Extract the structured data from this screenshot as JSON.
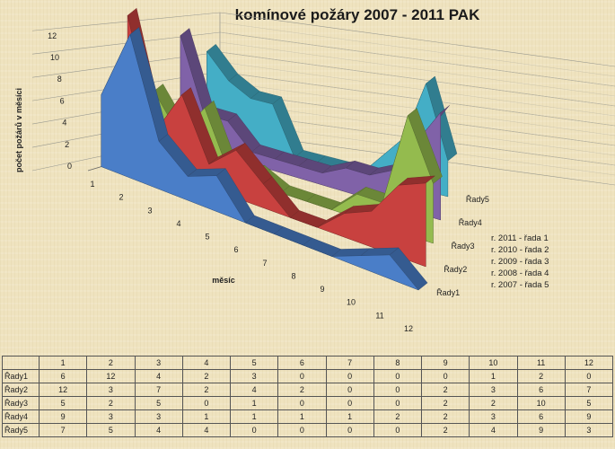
{
  "chart_data": {
    "type": "area",
    "title": "komínové požáry 2007 - 2011 PAK",
    "xlabel": "měsíc",
    "ylabel": "počet požárů v měsíci",
    "ylim": [
      0,
      12
    ],
    "yticks": [
      "0",
      "2",
      "4",
      "6",
      "8",
      "10",
      "12"
    ],
    "categories": [
      "1",
      "2",
      "3",
      "4",
      "5",
      "6",
      "7",
      "8",
      "9",
      "10",
      "11",
      "12"
    ],
    "grid": true,
    "legend_position": "right",
    "series": [
      {
        "name": "Řady1",
        "color": "#4a7ec8",
        "values": [
          6,
          12,
          4,
          2,
          3,
          0,
          0,
          0,
          0,
          1,
          2,
          0
        ]
      },
      {
        "name": "Řady2",
        "color": "#c8413f",
        "values": [
          12,
          3,
          7,
          2,
          4,
          2,
          0,
          0,
          2,
          3,
          6,
          7
        ]
      },
      {
        "name": "Řady3",
        "color": "#94bb4e",
        "values": [
          5,
          2,
          5,
          0,
          1,
          0,
          0,
          0,
          2,
          2,
          10,
          5
        ]
      },
      {
        "name": "Řady4",
        "color": "#8062a8",
        "values": [
          9,
          3,
          3,
          1,
          1,
          1,
          1,
          2,
          2,
          3,
          6,
          9
        ]
      },
      {
        "name": "Řady5",
        "color": "#44aec6",
        "values": [
          7,
          5,
          4,
          4,
          0,
          0,
          0,
          0,
          2,
          4,
          9,
          3
        ]
      }
    ],
    "legend_notes": [
      "r. 2011 - řada 1",
      "r. 2010 - řada 2",
      "r. 2009 - řada 3",
      "r. 2008 - řada 4",
      "r. 2007 - řada 5"
    ]
  }
}
